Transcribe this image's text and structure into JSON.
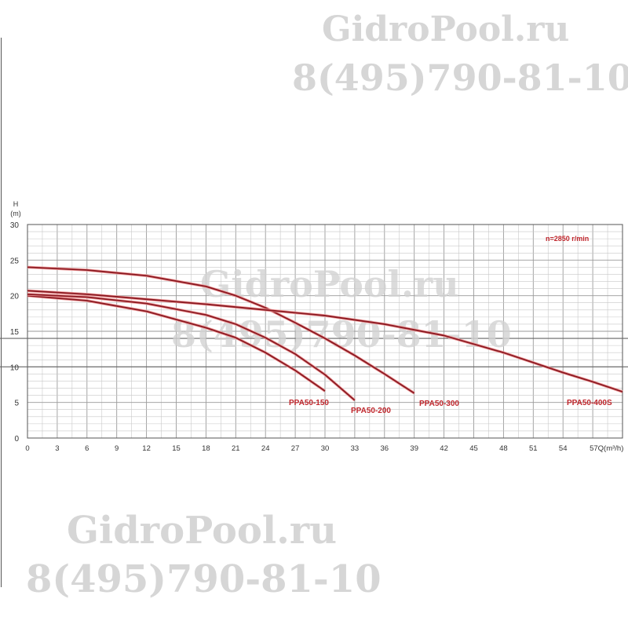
{
  "watermark": {
    "site": "GidroPool.ru",
    "phone": "8(495)790-81-10"
  },
  "chart_data": {
    "type": "line",
    "title": "",
    "ylabel": "H",
    "yunit": "(m)",
    "xlabel": "Q(m³/h)",
    "xlim": [
      0,
      60
    ],
    "ylim": [
      0,
      30
    ],
    "xticks": [
      0,
      3,
      6,
      9,
      12,
      15,
      18,
      21,
      24,
      27,
      30,
      33,
      36,
      39,
      42,
      45,
      48,
      51,
      54,
      57
    ],
    "xtick_labels": [
      "0",
      "3",
      "6",
      "9",
      "12",
      "15",
      "18",
      "21",
      "24",
      "27",
      "30",
      "33",
      "36",
      "39",
      "42",
      "45",
      "48",
      "51",
      "54",
      "57Q(m³/h)"
    ],
    "yticks": [
      0,
      5,
      10,
      15,
      20,
      25,
      30
    ],
    "grid": true,
    "annotation": "n=2850 r/min",
    "series_color": "#c0272d",
    "series": [
      {
        "name": "PPA50-150",
        "x": [
          0,
          6,
          12,
          18,
          21,
          24,
          27,
          30
        ],
        "y": [
          20.0,
          19.3,
          17.8,
          15.5,
          14.1,
          12.0,
          9.5,
          6.6
        ]
      },
      {
        "name": "PPA50-200",
        "x": [
          0,
          6,
          12,
          18,
          21,
          24,
          27,
          30,
          33
        ],
        "y": [
          20.2,
          19.8,
          18.9,
          17.3,
          16.0,
          14.1,
          11.8,
          8.9,
          5.3
        ]
      },
      {
        "name": "PPA50-300",
        "x": [
          0,
          6,
          12,
          18,
          21,
          24,
          27,
          30,
          33,
          36,
          39
        ],
        "y": [
          24.0,
          23.6,
          22.8,
          21.3,
          20.0,
          18.3,
          16.2,
          14.0,
          11.6,
          9.0,
          6.3
        ]
      },
      {
        "name": "PPA50-400S",
        "x": [
          0,
          6,
          12,
          18,
          24,
          30,
          36,
          42,
          48,
          51,
          54,
          57,
          60
        ],
        "y": [
          20.7,
          20.2,
          19.5,
          18.8,
          18.0,
          17.2,
          16.0,
          14.4,
          12.0,
          10.6,
          9.2,
          7.9,
          6.5
        ]
      }
    ]
  }
}
